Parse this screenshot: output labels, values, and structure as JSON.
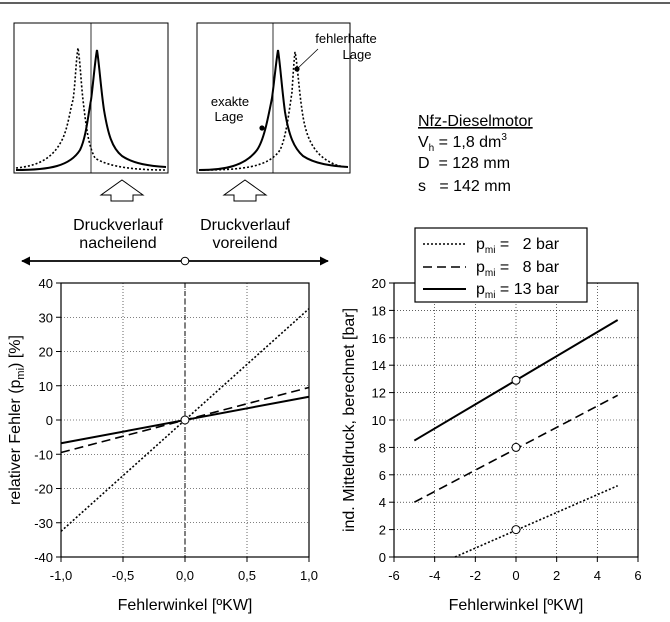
{
  "chart_data": [
    {
      "type": "line",
      "xlabel": "Fehlerwinkel [ºKW]",
      "ylabel_prefix": "relativer Fehler (p",
      "ylabel_sub": "mi",
      "ylabel_suffix": ") [%]",
      "xlim": [
        -1.0,
        1.0
      ],
      "ylim": [
        -40,
        40
      ],
      "xticks": [
        -1.0,
        -0.5,
        0.0,
        0.5,
        1.0
      ],
      "xtick_labels": [
        "-1,0",
        "-0,5",
        "0,0",
        "0,5",
        "1,0"
      ],
      "yticks": [
        -40,
        -30,
        -20,
        -10,
        0,
        10,
        20,
        30,
        40
      ],
      "ytick_labels": [
        "-40",
        "-30",
        "-20",
        "-10",
        "0",
        "10",
        "20",
        "30",
        "40"
      ],
      "grid": true,
      "series": [
        {
          "pmi": "2",
          "style": "dotted",
          "x": [
            -1.0,
            1.0
          ],
          "y": [
            -32.5,
            32.5
          ]
        },
        {
          "pmi": "8",
          "style": "dashed",
          "x": [
            -1.0,
            1.0
          ],
          "y": [
            -9.5,
            9.5
          ]
        },
        {
          "pmi": "13",
          "style": "solid",
          "x": [
            -1.0,
            1.0
          ],
          "y": [
            -6.8,
            6.8
          ]
        }
      ],
      "markers": [
        {
          "x": 0.0,
          "y": 0
        }
      ]
    },
    {
      "type": "line",
      "xlabel": "Fehlerwinkel [ºKW]",
      "ylabel": "ind. Mitteldruck, berechnet [bar]",
      "xlim": [
        -6,
        6
      ],
      "ylim": [
        0,
        20
      ],
      "xticks": [
        -6,
        -4,
        -2,
        0,
        2,
        4,
        6
      ],
      "xtick_labels": [
        "-6",
        "-4",
        "-2",
        "0",
        "2",
        "4",
        "6"
      ],
      "yticks": [
        0,
        2,
        4,
        6,
        8,
        10,
        12,
        14,
        16,
        18,
        20
      ],
      "ytick_labels": [
        "0",
        "2",
        "4",
        "6",
        "8",
        "10",
        "12",
        "14",
        "16",
        "18",
        "20"
      ],
      "grid": true,
      "legend_placement": "top-left",
      "series": [
        {
          "name_prefix": "p",
          "name_sub": "mi",
          "name_suffix": " =   2 bar",
          "style": "dotted",
          "x": [
            -3,
            5
          ],
          "y": [
            0,
            5.2
          ]
        },
        {
          "name_prefix": "p",
          "name_sub": "mi",
          "name_suffix": " =   8 bar",
          "style": "dashed",
          "x": [
            -5,
            5
          ],
          "y": [
            4.0,
            11.8
          ]
        },
        {
          "name_prefix": "p",
          "name_sub": "mi",
          "name_suffix": " = 13 bar",
          "style": "solid",
          "x": [
            -5,
            5
          ],
          "y": [
            8.5,
            17.3
          ]
        }
      ],
      "markers": [
        {
          "x": 0,
          "y": 2.0
        },
        {
          "x": 0,
          "y": 8.0
        },
        {
          "x": 0,
          "y": 12.9
        }
      ]
    }
  ],
  "diagram": {
    "label_late_1": "Druckverlauf",
    "label_late_2": "nacheilend",
    "label_early_1": "Druckverlauf",
    "label_early_2": "voreilend",
    "label_exact_1": "exakte",
    "label_exact_2": "Lage",
    "label_faulty_1": "fehlerhafte",
    "label_faulty_2": "Lage"
  },
  "engine": {
    "title": "Nfz-Dieselmotor",
    "vh_prefix": "V",
    "vh_sub": "h",
    "vh_value": " = 1,8 dm",
    "vh_sup": "3",
    "d_line": "D  = 128 mm",
    "s_line": "s   = 142 mm"
  }
}
